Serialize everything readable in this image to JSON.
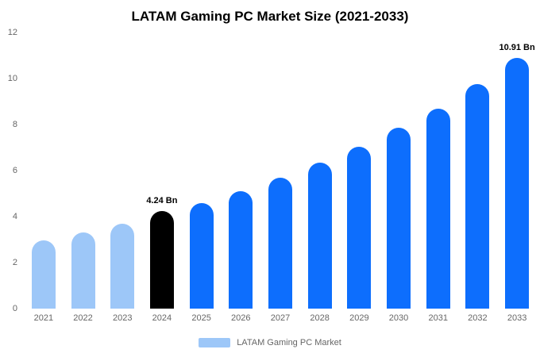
{
  "title": "LATAM Gaming PC Market Size (2021-2033)",
  "legend": {
    "label": "LATAM Gaming PC Market",
    "swatch_color": "#9dc7f8"
  },
  "colors": {
    "historical_bar": "#9dc7f8",
    "base_year_bar": "#000000",
    "forecast_bar": "#0d6efd",
    "axis_text": "#666666",
    "label_text": "#000000",
    "background": "#ffffff"
  },
  "chart_data": {
    "type": "bar",
    "title": "LATAM Gaming PC Market Size (2021-2033)",
    "categories": [
      "2021",
      "2022",
      "2023",
      "2024",
      "2025",
      "2026",
      "2027",
      "2028",
      "2029",
      "2030",
      "2031",
      "2032",
      "2033"
    ],
    "values": [
      2.95,
      3.3,
      3.7,
      4.24,
      4.6,
      5.1,
      5.7,
      6.35,
      7.05,
      7.85,
      8.7,
      9.75,
      10.91
    ],
    "point_labels": [
      "",
      "",
      "",
      "4.24 Bn",
      "",
      "",
      "",
      "",
      "",
      "",
      "",
      "",
      "10.91 Bn"
    ],
    "bar_colors": [
      "#9dc7f8",
      "#9dc7f8",
      "#9dc7f8",
      "#000000",
      "#0d6efd",
      "#0d6efd",
      "#0d6efd",
      "#0d6efd",
      "#0d6efd",
      "#0d6efd",
      "#0d6efd",
      "#0d6efd",
      "#0d6efd"
    ],
    "xlabel": "",
    "ylabel": "",
    "ylim": [
      0,
      12
    ],
    "y_ticks": [
      0,
      2,
      4,
      6,
      8,
      10,
      12
    ],
    "grid": false,
    "legend_position": "bottom",
    "legend_entries": [
      "LATAM Gaming PC Market"
    ]
  }
}
